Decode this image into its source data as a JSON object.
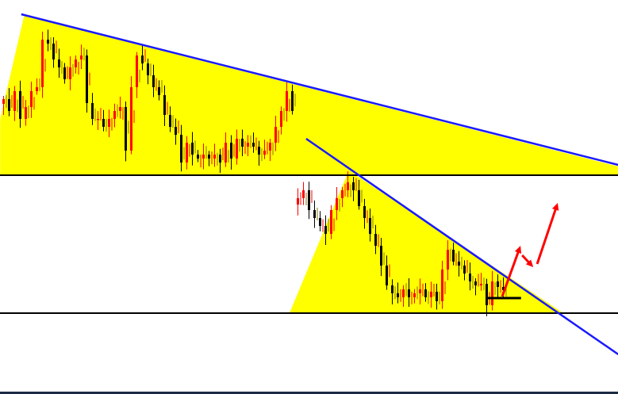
{
  "chart_data": {
    "type": "candlestick",
    "title": "",
    "grid": false,
    "legend": "none",
    "colors": {
      "background": "#ffffff",
      "zone_fill": "#ffff00",
      "trendline": "#1a1aff",
      "level_line": "#000000",
      "bullish_candle": "#ff0000",
      "bearish_candle": "#000000",
      "arrow": "#ff0000"
    },
    "close": [
      372,
      357,
      382,
      347,
      362,
      382,
      387,
      447,
      442,
      422,
      412,
      397,
      412,
      422,
      427,
      367,
      347,
      347,
      337,
      347,
      357,
      362,
      307,
      387,
      427,
      417,
      402,
      387,
      377,
      352,
      337,
      327,
      292,
      317,
      302,
      297,
      302,
      297,
      302,
      292,
      317,
      297,
      322,
      312,
      317,
      312,
      302,
      307,
      317,
      337,
      357,
      382,
      357,
      247,
      257,
      232,
      222,
      212,
      202,
      232,
      247,
      257,
      267,
      257,
      237,
      222,
      202,
      187,
      162,
      137,
      127,
      122,
      132,
      122,
      127,
      132,
      122,
      129,
      117,
      157,
      182,
      167,
      162,
      152,
      142,
      137,
      139,
      112,
      142,
      135,
      131
    ],
    "gap_after_index": 52,
    "horizontal_levels": [
      276,
      102
    ],
    "trendlines": [
      {
        "from": [
          3.4,
          479
        ],
        "to": [
          110.9,
          289
        ]
      },
      {
        "from": [
          54.7,
          322
        ],
        "to": [
          110.9,
          50
        ]
      }
    ],
    "zones": [
      {
        "points": [
          [
            -0.4,
            276
          ],
          [
            -0.4,
            347
          ],
          [
            3.9,
            477
          ],
          [
            110.9,
            287
          ],
          [
            110.9,
            276
          ]
        ]
      },
      {
        "points": [
          [
            51.7,
            102
          ],
          [
            62.4,
            282
          ],
          [
            101,
            102
          ]
        ]
      }
    ],
    "support_marker": {
      "from": [
        87,
        121
      ],
      "to": [
        93.4,
        121
      ]
    },
    "arrows": [
      {
        "from": [
          90,
          123
        ],
        "to": [
          93.3,
          187
        ]
      },
      {
        "from": [
          93.6,
          175
        ],
        "to": [
          95.6,
          160
        ]
      },
      {
        "from": [
          96.3,
          164
        ],
        "to": [
          100,
          241
        ]
      }
    ]
  }
}
